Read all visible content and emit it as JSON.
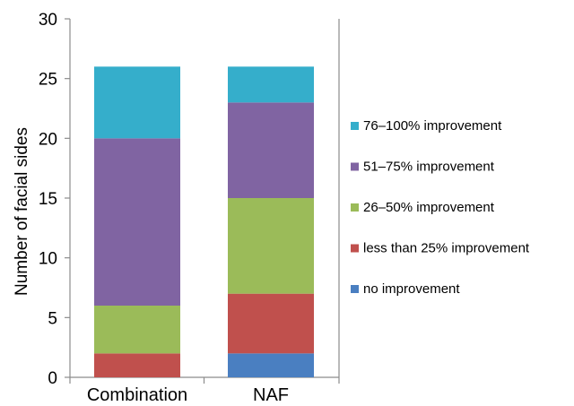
{
  "chart_data": {
    "type": "bar",
    "stacked": true,
    "title": "",
    "xlabel": "",
    "ylabel": "Number of facial sides",
    "ylim": [
      0,
      30
    ],
    "yticks": [
      0,
      5,
      10,
      15,
      20,
      25,
      30
    ],
    "grid": false,
    "legend_position": "right",
    "categories": [
      "Combination",
      "NAF"
    ],
    "series": [
      {
        "name": "no improvement",
        "color": "#4a7fc1",
        "values": [
          0,
          2
        ]
      },
      {
        "name": "less than 25% improvement",
        "color": "#c0504d",
        "values": [
          2,
          5
        ]
      },
      {
        "name": "26–50% improvement",
        "color": "#9bbb59",
        "values": [
          4,
          8
        ]
      },
      {
        "name": "51–75% improvement",
        "color": "#8064a2",
        "values": [
          14,
          8
        ]
      },
      {
        "name": "76–100% improvement",
        "color": "#35aecb",
        "values": [
          6,
          3
        ]
      }
    ]
  }
}
